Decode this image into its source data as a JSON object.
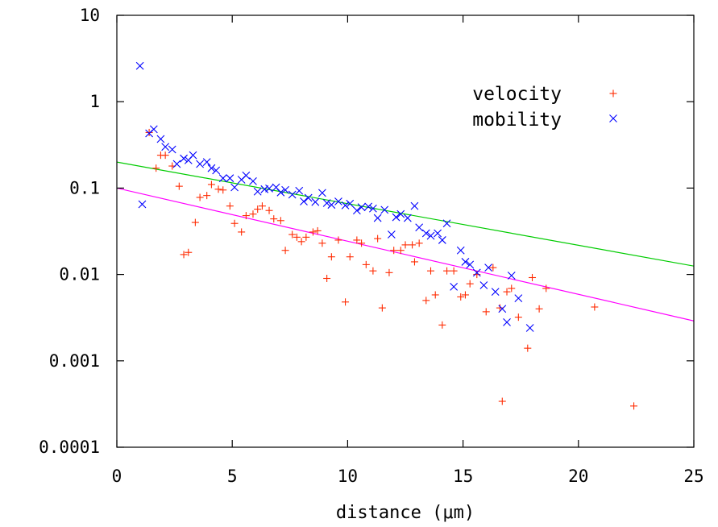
{
  "chart_data": {
    "type": "scatter",
    "title": "",
    "xlabel": "distance (μm)",
    "ylabel": "",
    "xlim": [
      0,
      25
    ],
    "ylim": [
      0.0001,
      10
    ],
    "yscale": "log",
    "grid": false,
    "legend_position": "top-right",
    "x_ticks": [
      {
        "value": 0,
        "label": "0"
      },
      {
        "value": 5,
        "label": "5"
      },
      {
        "value": 10,
        "label": "10"
      },
      {
        "value": 15,
        "label": "15"
      },
      {
        "value": 20,
        "label": "20"
      },
      {
        "value": 25,
        "label": "25"
      }
    ],
    "y_ticks": [
      {
        "value": 10,
        "label": "10"
      },
      {
        "value": 1,
        "label": "1"
      },
      {
        "value": 0.1,
        "label": "0.1"
      },
      {
        "value": 0.01,
        "label": "0.01"
      },
      {
        "value": 0.001,
        "label": "0.001"
      },
      {
        "value": 0.0001,
        "label": "0.0001"
      }
    ],
    "series": [
      {
        "name": "velocity",
        "marker": "plus",
        "color": "#ff2a00",
        "points": [
          [
            1.4,
            0.44
          ],
          [
            1.7,
            0.17
          ],
          [
            1.9,
            0.24
          ],
          [
            2.1,
            0.24
          ],
          [
            2.4,
            0.18
          ],
          [
            2.7,
            0.105
          ],
          [
            2.9,
            0.017
          ],
          [
            3.1,
            0.018
          ],
          [
            3.4,
            0.04
          ],
          [
            3.6,
            0.078
          ],
          [
            3.9,
            0.082
          ],
          [
            4.1,
            0.11
          ],
          [
            4.4,
            0.097
          ],
          [
            4.6,
            0.095
          ],
          [
            4.9,
            0.062
          ],
          [
            5.1,
            0.039
          ],
          [
            5.4,
            0.031
          ],
          [
            5.6,
            0.048
          ],
          [
            5.9,
            0.05
          ],
          [
            6.1,
            0.057
          ],
          [
            6.3,
            0.062
          ],
          [
            6.6,
            0.055
          ],
          [
            6.8,
            0.044
          ],
          [
            7.1,
            0.042
          ],
          [
            7.3,
            0.019
          ],
          [
            7.6,
            0.029
          ],
          [
            7.8,
            0.027
          ],
          [
            8.0,
            0.024
          ],
          [
            8.2,
            0.027
          ],
          [
            8.5,
            0.031
          ],
          [
            8.7,
            0.032
          ],
          [
            8.9,
            0.023
          ],
          [
            9.1,
            0.009
          ],
          [
            9.3,
            0.016
          ],
          [
            9.6,
            0.025
          ],
          [
            9.9,
            0.0048
          ],
          [
            10.1,
            0.016
          ],
          [
            10.4,
            0.025
          ],
          [
            10.6,
            0.023
          ],
          [
            10.8,
            0.013
          ],
          [
            11.1,
            0.011
          ],
          [
            11.3,
            0.026
          ],
          [
            11.5,
            0.0041
          ],
          [
            11.8,
            0.0105
          ],
          [
            12.0,
            0.019
          ],
          [
            12.3,
            0.019
          ],
          [
            12.5,
            0.022
          ],
          [
            12.8,
            0.022
          ],
          [
            12.9,
            0.014
          ],
          [
            13.1,
            0.023
          ],
          [
            13.4,
            0.005
          ],
          [
            13.6,
            0.011
          ],
          [
            13.8,
            0.0058
          ],
          [
            14.1,
            0.0026
          ],
          [
            14.3,
            0.011
          ],
          [
            14.6,
            0.011
          ],
          [
            14.9,
            0.0055
          ],
          [
            15.1,
            0.0058
          ],
          [
            15.3,
            0.0078
          ],
          [
            15.6,
            0.01
          ],
          [
            16.0,
            0.0037
          ],
          [
            16.3,
            0.012
          ],
          [
            16.6,
            0.0041
          ],
          [
            16.7,
            0.00034
          ],
          [
            16.9,
            0.0063
          ],
          [
            17.1,
            0.0069
          ],
          [
            17.4,
            0.0032
          ],
          [
            17.8,
            0.0014
          ],
          [
            18.0,
            0.0092
          ],
          [
            18.3,
            0.004
          ],
          [
            18.6,
            0.0069
          ],
          [
            20.7,
            0.0042
          ],
          [
            22.4,
            0.0003
          ]
        ]
      },
      {
        "name": "mobility",
        "marker": "cross",
        "color": "#0000ff",
        "points": [
          [
            1.0,
            2.6
          ],
          [
            1.1,
            0.065
          ],
          [
            1.4,
            0.43
          ],
          [
            1.6,
            0.48
          ],
          [
            1.9,
            0.37
          ],
          [
            2.1,
            0.3
          ],
          [
            2.4,
            0.28
          ],
          [
            2.6,
            0.19
          ],
          [
            2.9,
            0.22
          ],
          [
            3.1,
            0.21
          ],
          [
            3.3,
            0.24
          ],
          [
            3.6,
            0.19
          ],
          [
            3.9,
            0.2
          ],
          [
            4.1,
            0.17
          ],
          [
            4.3,
            0.16
          ],
          [
            4.6,
            0.13
          ],
          [
            4.9,
            0.13
          ],
          [
            5.1,
            0.102
          ],
          [
            5.4,
            0.125
          ],
          [
            5.6,
            0.14
          ],
          [
            5.9,
            0.12
          ],
          [
            6.1,
            0.091
          ],
          [
            6.4,
            0.097
          ],
          [
            6.6,
            0.099
          ],
          [
            6.9,
            0.102
          ],
          [
            7.1,
            0.089
          ],
          [
            7.3,
            0.095
          ],
          [
            7.6,
            0.084
          ],
          [
            7.9,
            0.093
          ],
          [
            8.1,
            0.07
          ],
          [
            8.3,
            0.077
          ],
          [
            8.6,
            0.069
          ],
          [
            8.9,
            0.088
          ],
          [
            9.1,
            0.067
          ],
          [
            9.3,
            0.064
          ],
          [
            9.6,
            0.07
          ],
          [
            9.9,
            0.063
          ],
          [
            10.1,
            0.066
          ],
          [
            10.4,
            0.055
          ],
          [
            10.6,
            0.06
          ],
          [
            10.9,
            0.061
          ],
          [
            11.1,
            0.058
          ],
          [
            11.3,
            0.045
          ],
          [
            11.6,
            0.056
          ],
          [
            11.9,
            0.029
          ],
          [
            12.1,
            0.046
          ],
          [
            12.3,
            0.05
          ],
          [
            12.6,
            0.045
          ],
          [
            12.9,
            0.062
          ],
          [
            13.1,
            0.035
          ],
          [
            13.4,
            0.03
          ],
          [
            13.6,
            0.028
          ],
          [
            13.9,
            0.03
          ],
          [
            14.1,
            0.025
          ],
          [
            14.3,
            0.039
          ],
          [
            14.6,
            0.0072
          ],
          [
            14.9,
            0.019
          ],
          [
            15.1,
            0.014
          ],
          [
            15.3,
            0.013
          ],
          [
            15.6,
            0.0105
          ],
          [
            15.9,
            0.0075
          ],
          [
            16.1,
            0.012
          ],
          [
            16.4,
            0.0063
          ],
          [
            16.7,
            0.004
          ],
          [
            16.9,
            0.0028
          ],
          [
            17.1,
            0.0097
          ],
          [
            17.4,
            0.0053
          ],
          [
            17.9,
            0.0024
          ]
        ]
      }
    ],
    "fit_lines": [
      {
        "color": "#00cc00",
        "x": [
          0,
          25
        ],
        "y": [
          0.2,
          0.0125
        ]
      },
      {
        "color": "#ff00ff",
        "x": [
          0,
          25
        ],
        "y": [
          0.1,
          0.0029
        ]
      }
    ]
  }
}
